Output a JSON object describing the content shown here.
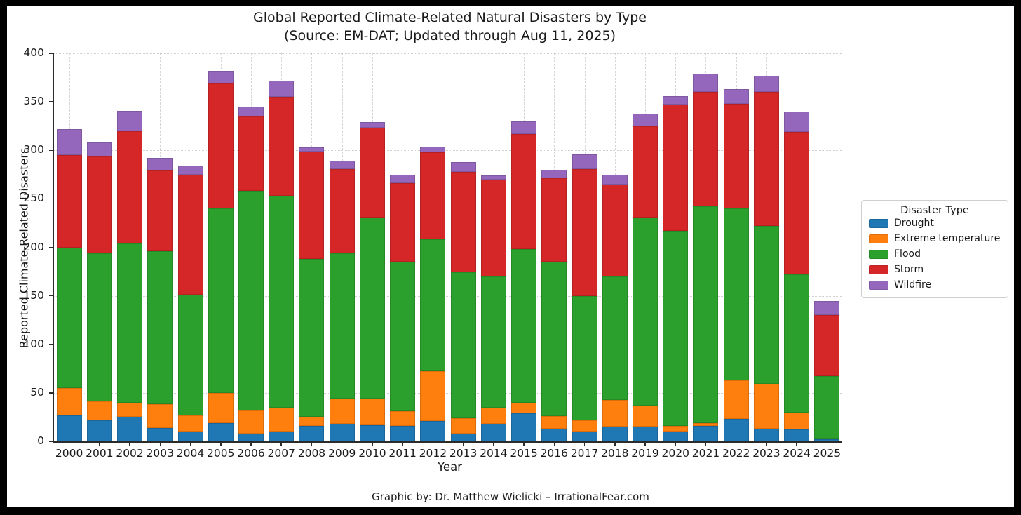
{
  "figure": {
    "title_line1": "Global Reported Climate-Related Natural Disasters by Type",
    "title_line2": "(Source: EM-DAT; Updated through Aug 11, 2025)",
    "xlabel": "Year",
    "ylabel": "Reported Climate-Related Disasters",
    "caption": "Graphic by: Dr. Matthew Wielicki – IrrationalFear.com"
  },
  "legend": {
    "title": "Disaster Type",
    "entries": [
      {
        "label": "Drought",
        "color": "#1f77b4"
      },
      {
        "label": "Extreme temperature",
        "color": "#ff7f0e"
      },
      {
        "label": "Flood",
        "color": "#2ca02c"
      },
      {
        "label": "Storm",
        "color": "#d62728"
      },
      {
        "label": "Wildfire",
        "color": "#9467bd"
      }
    ]
  },
  "chart_data": {
    "type": "bar",
    "stacked": true,
    "title": "Global Reported Climate-Related Natural Disasters by Type (Source: EM-DAT; Updated through Aug 11, 2025)",
    "xlabel": "Year",
    "ylabel": "Reported Climate-Related Disasters",
    "ylim": [
      0,
      400
    ],
    "yticks": [
      0,
      50,
      100,
      150,
      200,
      250,
      300,
      350,
      400
    ],
    "grid": true,
    "legend_position": "right",
    "categories": [
      "2000",
      "2001",
      "2002",
      "2003",
      "2004",
      "2005",
      "2006",
      "2007",
      "2008",
      "2009",
      "2010",
      "2011",
      "2012",
      "2013",
      "2014",
      "2015",
      "2016",
      "2017",
      "2018",
      "2019",
      "2020",
      "2021",
      "2022",
      "2023",
      "2024",
      "2025"
    ],
    "series": [
      {
        "name": "Drought",
        "color": "#1f77b4",
        "values": [
          27,
          22,
          25,
          14,
          10,
          19,
          8,
          10,
          16,
          18,
          17,
          16,
          21,
          8,
          18,
          29,
          13,
          10,
          15,
          15,
          10,
          16,
          23,
          13,
          12,
          2
        ]
      },
      {
        "name": "Extreme temperature",
        "color": "#ff7f0e",
        "values": [
          28,
          19,
          15,
          24,
          17,
          31,
          24,
          25,
          9,
          26,
          27,
          15,
          51,
          16,
          17,
          11,
          13,
          12,
          28,
          22,
          6,
          3,
          40,
          46,
          18,
          1
        ]
      },
      {
        "name": "Flood",
        "color": "#2ca02c",
        "values": [
          145,
          153,
          164,
          158,
          124,
          190,
          226,
          218,
          163,
          150,
          187,
          154,
          136,
          150,
          135,
          158,
          159,
          128,
          127,
          194,
          201,
          223,
          177,
          163,
          142,
          64
        ]
      },
      {
        "name": "Storm",
        "color": "#d62728",
        "values": [
          95,
          100,
          116,
          83,
          124,
          129,
          77,
          102,
          111,
          87,
          92,
          81,
          90,
          104,
          100,
          119,
          86,
          131,
          95,
          94,
          130,
          118,
          108,
          138,
          147,
          63
        ]
      },
      {
        "name": "Wildfire",
        "color": "#9467bd",
        "values": [
          27,
          14,
          21,
          13,
          9,
          13,
          10,
          17,
          4,
          8,
          6,
          9,
          6,
          10,
          4,
          13,
          9,
          15,
          10,
          13,
          9,
          19,
          15,
          17,
          21,
          15
        ]
      }
    ],
    "totals": [
      322,
      308,
      341,
      292,
      284,
      382,
      345,
      372,
      303,
      289,
      329,
      275,
      304,
      288,
      274,
      330,
      280,
      296,
      275,
      338,
      356,
      379,
      363,
      377,
      340,
      145
    ]
  }
}
